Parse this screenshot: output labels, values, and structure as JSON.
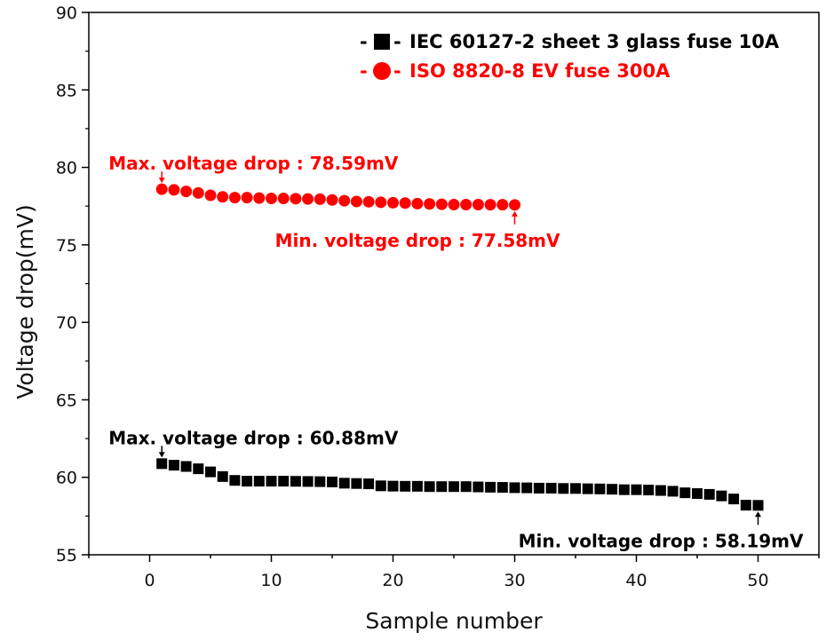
{
  "chart_data": {
    "type": "scatter",
    "xlabel": "Sample number",
    "ylabel": "Voltage drop(mV)",
    "xlim": [
      -5,
      55
    ],
    "ylim": [
      55,
      90
    ],
    "xticks": [
      0,
      10,
      20,
      30,
      40,
      50
    ],
    "yticks": [
      55,
      60,
      65,
      70,
      75,
      80,
      85,
      90
    ],
    "grid": false,
    "legend_position": "top-right",
    "series": [
      {
        "name": "IEC 60127-2 sheet 3 glass fuse 10A",
        "legend_prefix": "-",
        "legend_suffix": "-",
        "color": "#000000",
        "marker": "square",
        "x": [
          1,
          2,
          3,
          4,
          5,
          6,
          7,
          8,
          9,
          10,
          11,
          12,
          13,
          14,
          15,
          16,
          17,
          18,
          19,
          20,
          21,
          22,
          23,
          24,
          25,
          26,
          27,
          28,
          29,
          30,
          31,
          32,
          33,
          34,
          35,
          36,
          37,
          38,
          39,
          40,
          41,
          42,
          43,
          44,
          45,
          46,
          47,
          48,
          49,
          50
        ],
        "values": [
          60.88,
          60.78,
          60.7,
          60.55,
          60.35,
          60.05,
          59.8,
          59.75,
          59.75,
          59.75,
          59.75,
          59.74,
          59.73,
          59.72,
          59.7,
          59.62,
          59.6,
          59.58,
          59.45,
          59.43,
          59.42,
          59.42,
          59.4,
          59.4,
          59.4,
          59.4,
          59.38,
          59.36,
          59.35,
          59.33,
          59.32,
          59.3,
          59.3,
          59.28,
          59.28,
          59.26,
          59.25,
          59.23,
          59.2,
          59.2,
          59.18,
          59.15,
          59.1,
          59.0,
          58.95,
          58.9,
          58.8,
          58.6,
          58.2,
          58.19
        ]
      },
      {
        "name": "ISO 8820-8 EV fuse 300A",
        "legend_prefix": "-",
        "legend_suffix": "-",
        "color": "#ff0000",
        "marker": "circle",
        "x": [
          1,
          2,
          3,
          4,
          5,
          6,
          7,
          8,
          9,
          10,
          11,
          12,
          13,
          14,
          15,
          16,
          17,
          18,
          19,
          20,
          21,
          22,
          23,
          24,
          25,
          26,
          27,
          28,
          29,
          30
        ],
        "values": [
          78.59,
          78.55,
          78.45,
          78.35,
          78.2,
          78.1,
          78.05,
          78.05,
          78.02,
          78.0,
          78.0,
          77.98,
          77.96,
          77.95,
          77.9,
          77.85,
          77.8,
          77.78,
          77.75,
          77.72,
          77.7,
          77.66,
          77.64,
          77.62,
          77.6,
          77.6,
          77.6,
          77.59,
          77.59,
          77.58
        ]
      }
    ],
    "annotations": [
      {
        "text": "Max. voltage drop : 78.59mV",
        "color": "#ff0000",
        "point": [
          1,
          78.59
        ],
        "placement": "above"
      },
      {
        "text": "Min. voltage drop : 77.58mV",
        "color": "#ff0000",
        "point": [
          30,
          77.58
        ],
        "placement": "below"
      },
      {
        "text": "Max. voltage drop : 60.88mV",
        "color": "#000000",
        "point": [
          1,
          60.88
        ],
        "placement": "above"
      },
      {
        "text": "Min. voltage drop : 58.19mV",
        "color": "#000000",
        "point": [
          50,
          58.19
        ],
        "placement": "below"
      }
    ]
  }
}
